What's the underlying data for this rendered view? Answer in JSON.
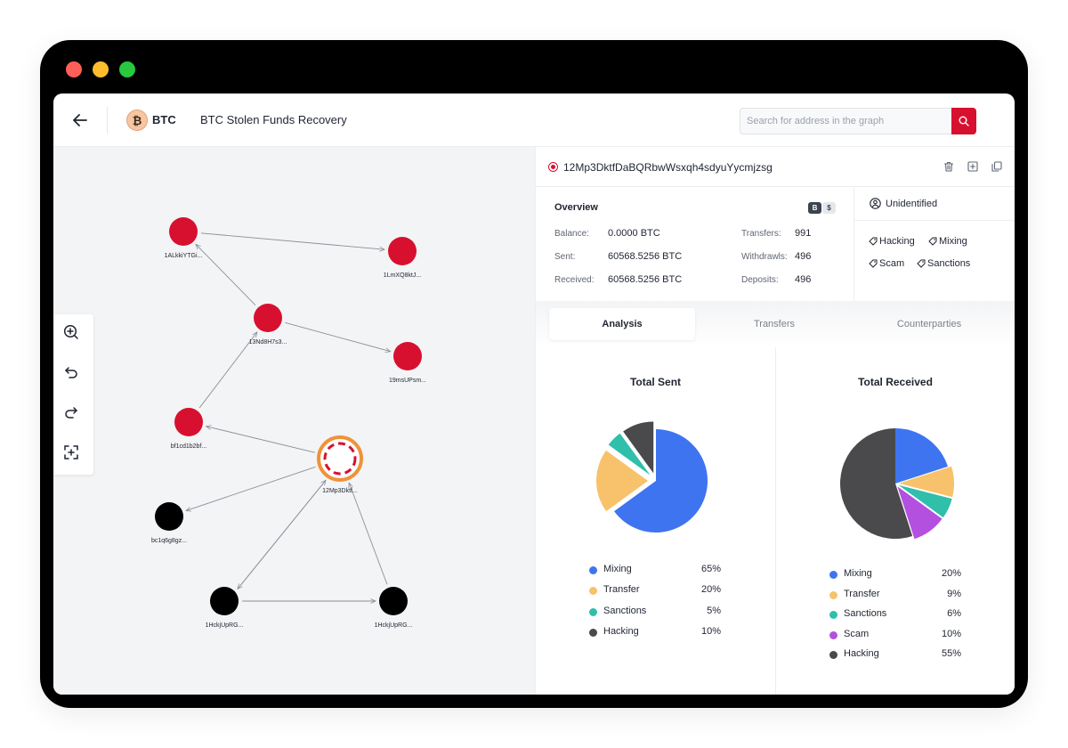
{
  "header": {
    "coin_symbol": "₿",
    "coin_label": "BTC",
    "case_title": "BTC Stolen Funds Recovery",
    "search_placeholder": "Search for address in the graph"
  },
  "graph": {
    "nodes": [
      {
        "id": "n1",
        "label": "1ALkkiYTGi...",
        "color": "#d8102f"
      },
      {
        "id": "n2",
        "label": "1LmXQ8ktJ...",
        "color": "#d8102f"
      },
      {
        "id": "n3",
        "label": "13Nd8H7s3...",
        "color": "#d8102f"
      },
      {
        "id": "n4",
        "label": "19msUPsm...",
        "color": "#d8102f"
      },
      {
        "id": "n5",
        "label": "bf1cd1b2bf...",
        "color": "#d8102f"
      },
      {
        "id": "n6",
        "label": "12Mp3Dktf...",
        "color": "#f0923a"
      },
      {
        "id": "n7",
        "label": "bc1q6g8gz...",
        "color": "#000000"
      },
      {
        "id": "n8",
        "label": "1HckjUpRG...",
        "color": "#000000"
      },
      {
        "id": "n9",
        "label": "1HckjUpRG...",
        "color": "#000000"
      }
    ]
  },
  "address": {
    "value": "12Mp3DktfDaBQRbwWsxqh4sdyuYycmjzsg"
  },
  "overview": {
    "title": "Overview",
    "badge_btc": "B",
    "badge_usd": "$",
    "balance_label": "Balance:",
    "balance_value": "0.0000 BTC",
    "sent_label": "Sent:",
    "sent_value": "60568.5256 BTC",
    "received_label": "Received:",
    "received_value": "60568.5256 BTC",
    "transfers_label": "Transfers:",
    "transfers_value": "991",
    "withdrawls_label": "Withdrawls:",
    "withdrawls_value": "496",
    "deposits_label": "Deposits:",
    "deposits_value": "496"
  },
  "identity": {
    "label": "Unidentified",
    "tags": [
      "Hacking",
      "Mixing",
      "Scam",
      "Sanctions"
    ]
  },
  "tabs": [
    "Analysis",
    "Transfers",
    "Counterparties"
  ],
  "colors": {
    "Mixing": "#3e74f0",
    "Transfer": "#f7c26b",
    "Sanctions": "#2fbfaa",
    "Scam": "#b350e0",
    "Hacking": "#4a4a4c",
    "accent": "#d8102f"
  },
  "chart_data": [
    {
      "type": "pie",
      "title": "Total Sent",
      "slices": [
        {
          "name": "Mixing",
          "value": 65,
          "label": "65%"
        },
        {
          "name": "Transfer",
          "value": 20,
          "label": "20%"
        },
        {
          "name": "Sanctions",
          "value": 5,
          "label": "5%"
        },
        {
          "name": "Hacking",
          "value": 10,
          "label": "10%"
        }
      ]
    },
    {
      "type": "pie",
      "title": "Total Received",
      "slices": [
        {
          "name": "Mixing",
          "value": 20,
          "label": "20%"
        },
        {
          "name": "Transfer",
          "value": 9,
          "label": "9%"
        },
        {
          "name": "Sanctions",
          "value": 6,
          "label": "6%"
        },
        {
          "name": "Scam",
          "value": 10,
          "label": "10%"
        },
        {
          "name": "Hacking",
          "value": 55,
          "label": "55%"
        }
      ]
    }
  ]
}
